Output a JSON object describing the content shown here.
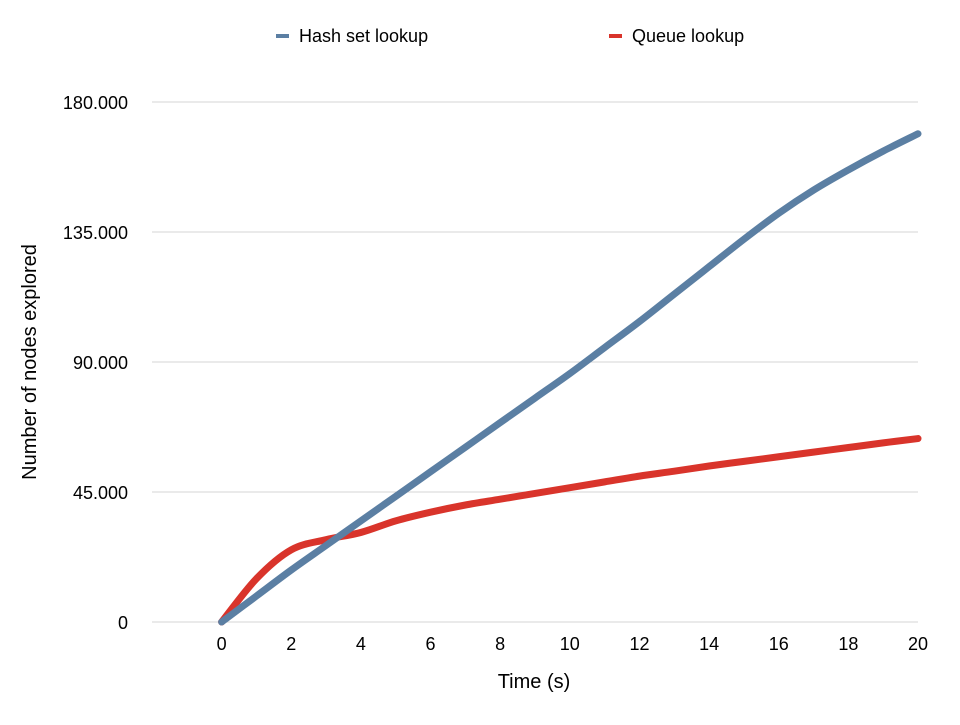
{
  "chart_data": {
    "type": "line",
    "xlabel": "Time (s)",
    "ylabel": "Number of nodes explored",
    "xlim": [
      -2,
      20
    ],
    "ylim": [
      0,
      180000
    ],
    "x_ticks": [
      0,
      2,
      4,
      6,
      8,
      10,
      12,
      14,
      16,
      18,
      20
    ],
    "x_tick_labels": [
      "0",
      "2",
      "4",
      "6",
      "8",
      "10",
      "12",
      "14",
      "16",
      "18",
      "20"
    ],
    "y_ticks": [
      0,
      45000,
      90000,
      135000,
      180000
    ],
    "y_tick_labels": [
      "0",
      "45.000",
      "90.000",
      "135.000",
      "180.000"
    ],
    "grid": "horizontal",
    "legend_position": "top",
    "series": [
      {
        "name": "Hash set lookup",
        "color": "#5b7fa3",
        "x": [
          0,
          1,
          2,
          3,
          4,
          5,
          6,
          7,
          8,
          9,
          10,
          11,
          12,
          13,
          14,
          15,
          16,
          17,
          18,
          19,
          20
        ],
        "values": [
          0,
          9000,
          18000,
          26500,
          35000,
          43500,
          52000,
          60500,
          69000,
          77500,
          86000,
          95000,
          104000,
          113500,
          123000,
          132500,
          141500,
          149500,
          156500,
          163000,
          169000
        ]
      },
      {
        "name": "Queue lookup",
        "color": "#d9342b",
        "x": [
          0,
          1,
          2,
          3,
          4,
          5,
          6,
          7,
          8,
          9,
          10,
          11,
          12,
          13,
          14,
          15,
          16,
          17,
          18,
          19,
          20
        ],
        "values": [
          0,
          15000,
          25000,
          28500,
          31000,
          35000,
          38000,
          40500,
          42500,
          44500,
          46500,
          48500,
          50500,
          52200,
          54000,
          55600,
          57200,
          58800,
          60400,
          62000,
          63500
        ]
      }
    ]
  }
}
